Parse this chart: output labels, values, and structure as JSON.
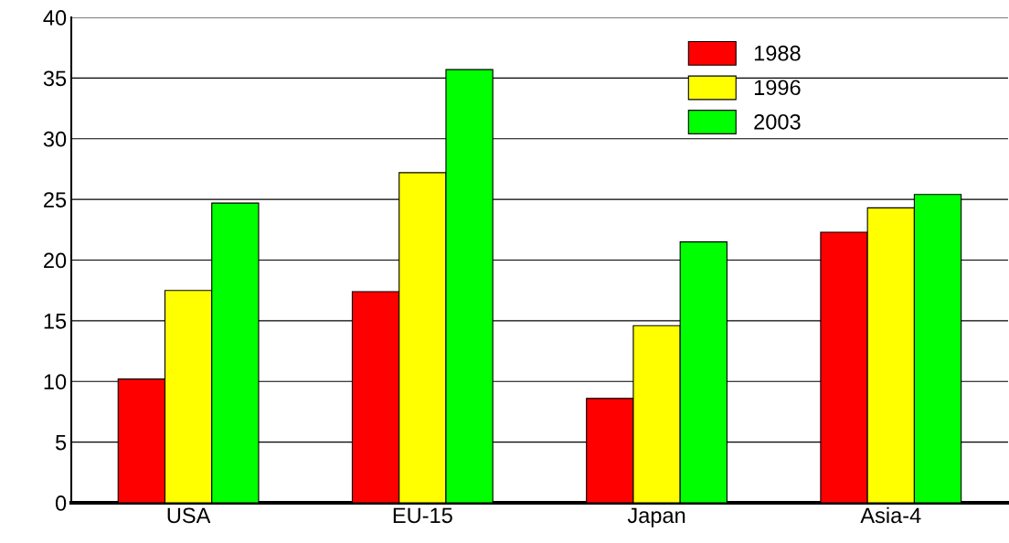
{
  "chart_data": {
    "type": "bar",
    "categories": [
      "USA",
      "EU-15",
      "Japan",
      "Asia-4"
    ],
    "series": [
      {
        "name": "1988",
        "color": "#ff0000",
        "values": [
          10.2,
          17.4,
          8.6,
          22.3
        ]
      },
      {
        "name": "1996",
        "color": "#ffff00",
        "values": [
          17.5,
          27.2,
          14.6,
          24.3
        ]
      },
      {
        "name": "2003",
        "color": "#00ff00",
        "values": [
          24.7,
          35.7,
          21.5,
          25.4
        ]
      }
    ],
    "ylim": [
      0,
      40
    ],
    "yticks": [
      0,
      5,
      10,
      15,
      20,
      25,
      30,
      35,
      40
    ],
    "grid": "y",
    "legend": "top right"
  }
}
